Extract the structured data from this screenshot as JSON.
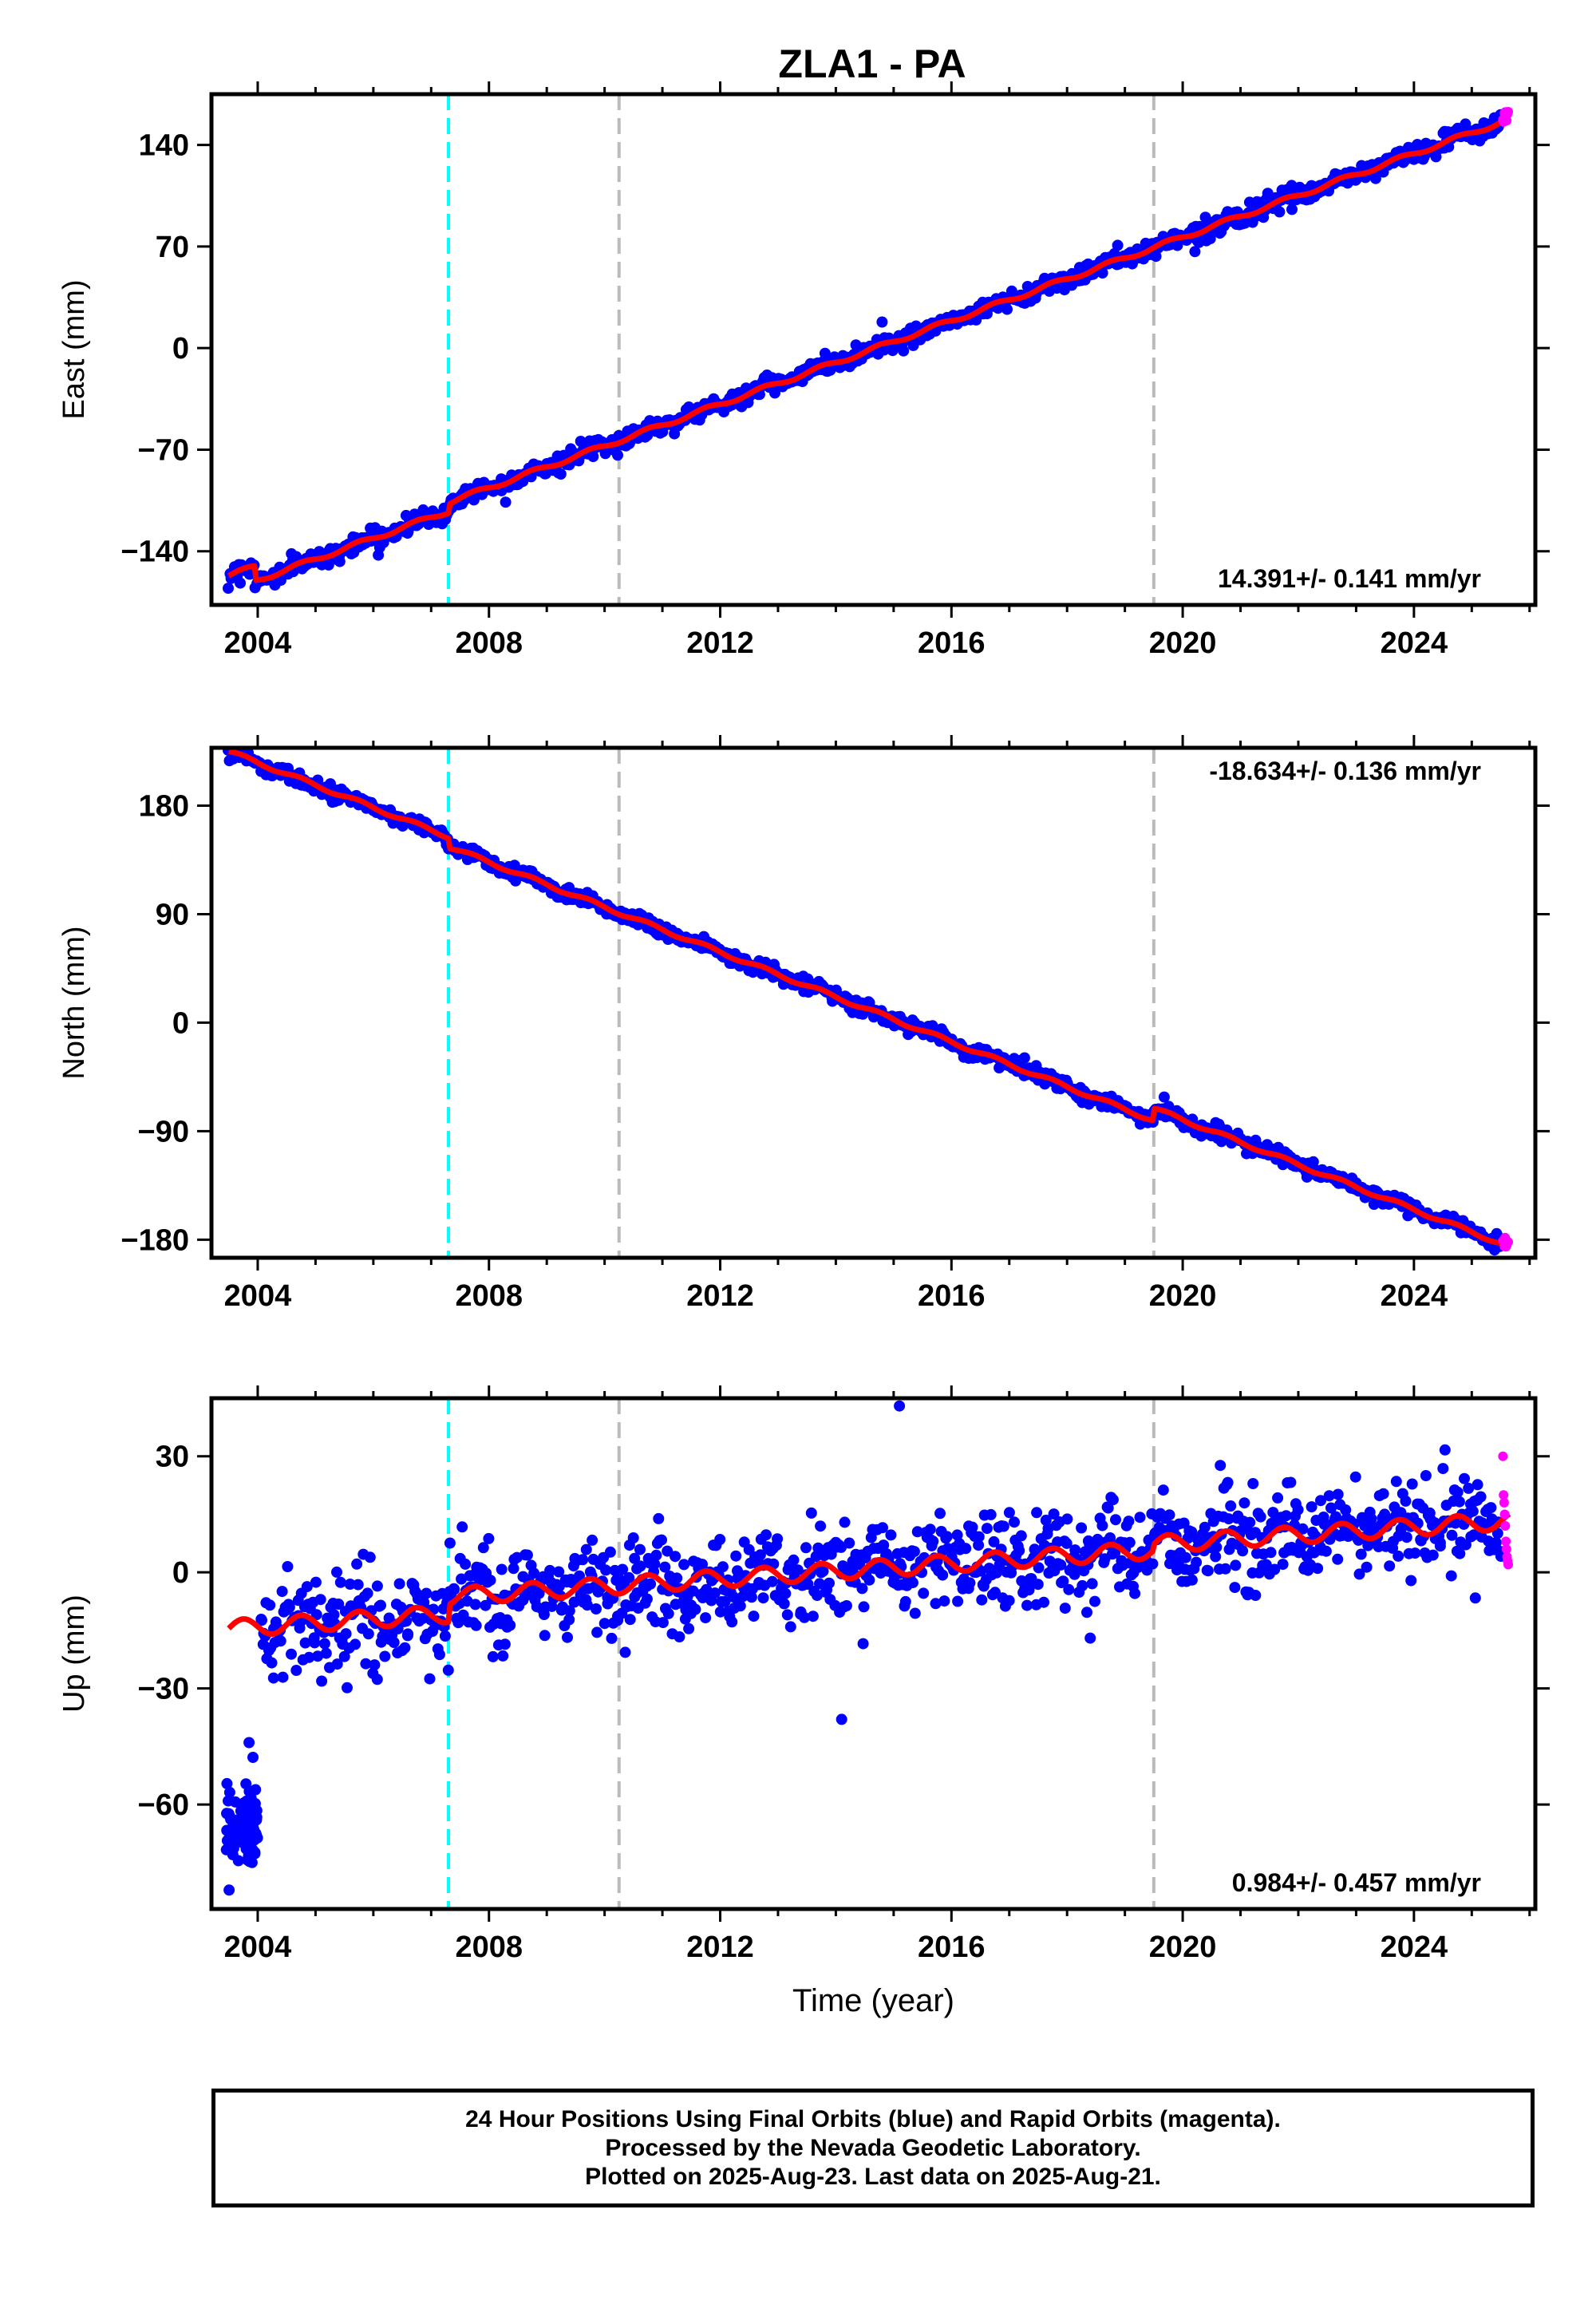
{
  "title": "ZLA1 - PA",
  "footer": {
    "lines": [
      "24 Hour Positions Using Final Orbits (blue) and Rapid Orbits (magenta).",
      "Processed by the Nevada Geodetic Laboratory.",
      "Plotted on 2025-Aug-23. Last data on 2025-Aug-21."
    ]
  },
  "colors": {
    "final_orbits": "#0000ff",
    "rapid_orbits": "#ff00ff",
    "model_fit": "#ff0000",
    "event_cyan": "#00ffff",
    "event_gray": "#bbbbbb"
  },
  "chart_data": [
    {
      "type": "scatter",
      "name": "east",
      "ylabel": "East (mm)",
      "xlabel": "",
      "xlim": [
        2003.2,
        2026.1
      ],
      "ylim": [
        -177,
        175
      ],
      "xticks": [
        "2004",
        "2008",
        "2012",
        "2016",
        "2020",
        "2024"
      ],
      "yticks": [
        "140",
        "70",
        "0",
        "−70",
        "−140"
      ],
      "ytick_values": [
        140,
        70,
        0,
        -70,
        -140
      ],
      "rate_label": "14.391+/- 0.141 mm/yr",
      "rate_position": "bottom-right",
      "rate": 14.391,
      "events": [
        {
          "x": 2007.3,
          "style": "cyan"
        },
        {
          "x": 2010.25,
          "style": "gray"
        },
        {
          "x": 2019.5,
          "style": "gray"
        }
      ],
      "trend": {
        "x0": 2003.5,
        "y0": -167,
        "slope": 14.391,
        "seasonal_amp": 1.5,
        "offsets": [
          {
            "x": 2007.3,
            "dy": 6
          }
        ],
        "early_anomaly": {
          "x_end": 2003.95,
          "dy": 10
        }
      },
      "outliers": [
        {
          "x": 2008.5,
          "y": -94
        },
        {
          "x": 2014.8,
          "y": 18
        },
        {
          "x": 2004.4,
          "y": -160
        }
      ],
      "scatter_noise": 3,
      "rapid_range": [
        2025.5,
        2025.65
      ],
      "grid": false
    },
    {
      "type": "scatter",
      "name": "north",
      "ylabel": "North (mm)",
      "xlabel": "",
      "xlim": [
        2003.2,
        2026.1
      ],
      "ylim": [
        -195,
        228
      ],
      "xticks": [
        "2004",
        "2008",
        "2012",
        "2016",
        "2020",
        "2024"
      ],
      "yticks": [
        "180",
        "90",
        "0",
        "−90",
        "−180"
      ],
      "ytick_values": [
        180,
        90,
        0,
        -90,
        -180
      ],
      "rate_label": "-18.634+/- 0.136 mm/yr",
      "rate_position": "top-right",
      "rate": -18.634,
      "events": [
        {
          "x": 2007.3,
          "style": "cyan"
        },
        {
          "x": 2010.25,
          "style": "gray"
        },
        {
          "x": 2019.5,
          "style": "gray"
        }
      ],
      "trend": {
        "x0": 2003.5,
        "y0": 225,
        "slope": -18.634,
        "seasonal_amp": 1.5,
        "offsets": [
          {
            "x": 2007.3,
            "dy": -8
          },
          {
            "x": 2019.5,
            "dy": 10
          }
        ]
      },
      "outliers": [
        {
          "x": 2009.7,
          "y": 108
        }
      ],
      "scatter_noise": 3,
      "rapid_range": [
        2025.5,
        2025.65
      ],
      "grid": false
    },
    {
      "type": "scatter",
      "name": "up",
      "ylabel": "Up (mm)",
      "xlabel": "Time (year)",
      "xlim": [
        2003.2,
        2026.1
      ],
      "ylim": [
        -87,
        45
      ],
      "xticks": [
        "2004",
        "2008",
        "2012",
        "2016",
        "2020",
        "2024"
      ],
      "yticks": [
        "30",
        "0",
        "−30",
        "−60"
      ],
      "ytick_values": [
        30,
        0,
        -30,
        -60
      ],
      "rate_label": "0.984+/- 0.457 mm/yr",
      "rate_position": "bottom-right",
      "rate": 0.984,
      "events": [
        {
          "x": 2007.3,
          "style": "cyan"
        },
        {
          "x": 2010.25,
          "style": "gray"
        },
        {
          "x": 2019.5,
          "style": "gray"
        }
      ],
      "trend": {
        "x0": 2003.5,
        "y0": -14.5,
        "slope": 0.984,
        "seasonal_amp": 2.2,
        "offsets": [
          {
            "x": 2007.3,
            "dy": 4.5
          },
          {
            "x": 2019.5,
            "dy": 1.5
          }
        ]
      },
      "early_cluster": {
        "x_start": 2003.45,
        "x_end": 2004.0,
        "y_center": -66,
        "spread": 6
      },
      "outliers": [
        {
          "x": 2015.1,
          "y": 43
        },
        {
          "x": 2014.1,
          "y": -38
        },
        {
          "x": 2018.4,
          "y": -17
        },
        {
          "x": 2003.85,
          "y": -44
        }
      ],
      "scatter_noise": 6,
      "data_start": 2004.05,
      "rapid_range": [
        2025.5,
        2025.65
      ],
      "rapid_points": [
        30,
        20,
        18,
        15,
        12,
        8,
        6,
        4,
        3,
        2
      ],
      "grid": false
    }
  ]
}
